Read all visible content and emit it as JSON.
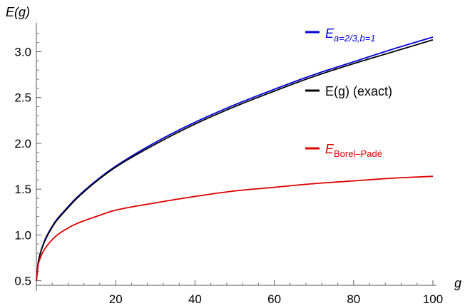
{
  "chart_data": {
    "type": "line",
    "title": "",
    "xlabel": "g",
    "ylabel": "E(g)",
    "xlim": [
      0,
      100
    ],
    "ylim": [
      0.45,
      3.3
    ],
    "x_ticks": [
      20,
      40,
      60,
      80,
      100
    ],
    "y_ticks": [
      0.5,
      1.0,
      1.5,
      2.0,
      2.5,
      3.0
    ],
    "x_tick_labels": [
      "20",
      "40",
      "60",
      "80",
      "100"
    ],
    "y_tick_labels": [
      "0.5",
      "1.0",
      "1.5",
      "2.0",
      "2.5",
      "3.0"
    ],
    "legend_placement": "inline-right",
    "series": [
      {
        "key": "approx",
        "legend_main": "E",
        "legend_sub": "a=2/3,b=1",
        "color": "#0000dd",
        "x": [
          0,
          0.5,
          1,
          2,
          3,
          5,
          7,
          10,
          15,
          20,
          30,
          40,
          50,
          60,
          70,
          80,
          90,
          100
        ],
        "y": [
          0.5,
          0.71,
          0.8,
          0.93,
          1.02,
          1.16,
          1.26,
          1.4,
          1.59,
          1.75,
          2.01,
          2.23,
          2.42,
          2.59,
          2.75,
          2.89,
          3.03,
          3.16
        ]
      },
      {
        "key": "exact",
        "legend_main": "E(g) (exact)",
        "legend_sub": "",
        "color": "#000000",
        "x": [
          0,
          0.5,
          1,
          2,
          3,
          5,
          7,
          10,
          15,
          20,
          30,
          40,
          50,
          60,
          70,
          80,
          90,
          100
        ],
        "y": [
          0.5,
          0.7,
          0.8,
          0.92,
          1.01,
          1.15,
          1.25,
          1.39,
          1.58,
          1.74,
          1.99,
          2.21,
          2.4,
          2.57,
          2.73,
          2.87,
          3.0,
          3.13
        ]
      },
      {
        "key": "borel",
        "legend_main": "E",
        "legend_sub": "Borel–Padé",
        "color": "#dd0000",
        "x": [
          0,
          0.5,
          1,
          2,
          3,
          5,
          7,
          10,
          15,
          20,
          30,
          40,
          50,
          60,
          70,
          80,
          90,
          100
        ],
        "y": [
          0.5,
          0.68,
          0.75,
          0.84,
          0.9,
          0.99,
          1.05,
          1.12,
          1.2,
          1.27,
          1.35,
          1.42,
          1.48,
          1.52,
          1.56,
          1.59,
          1.62,
          1.64
        ]
      }
    ]
  }
}
